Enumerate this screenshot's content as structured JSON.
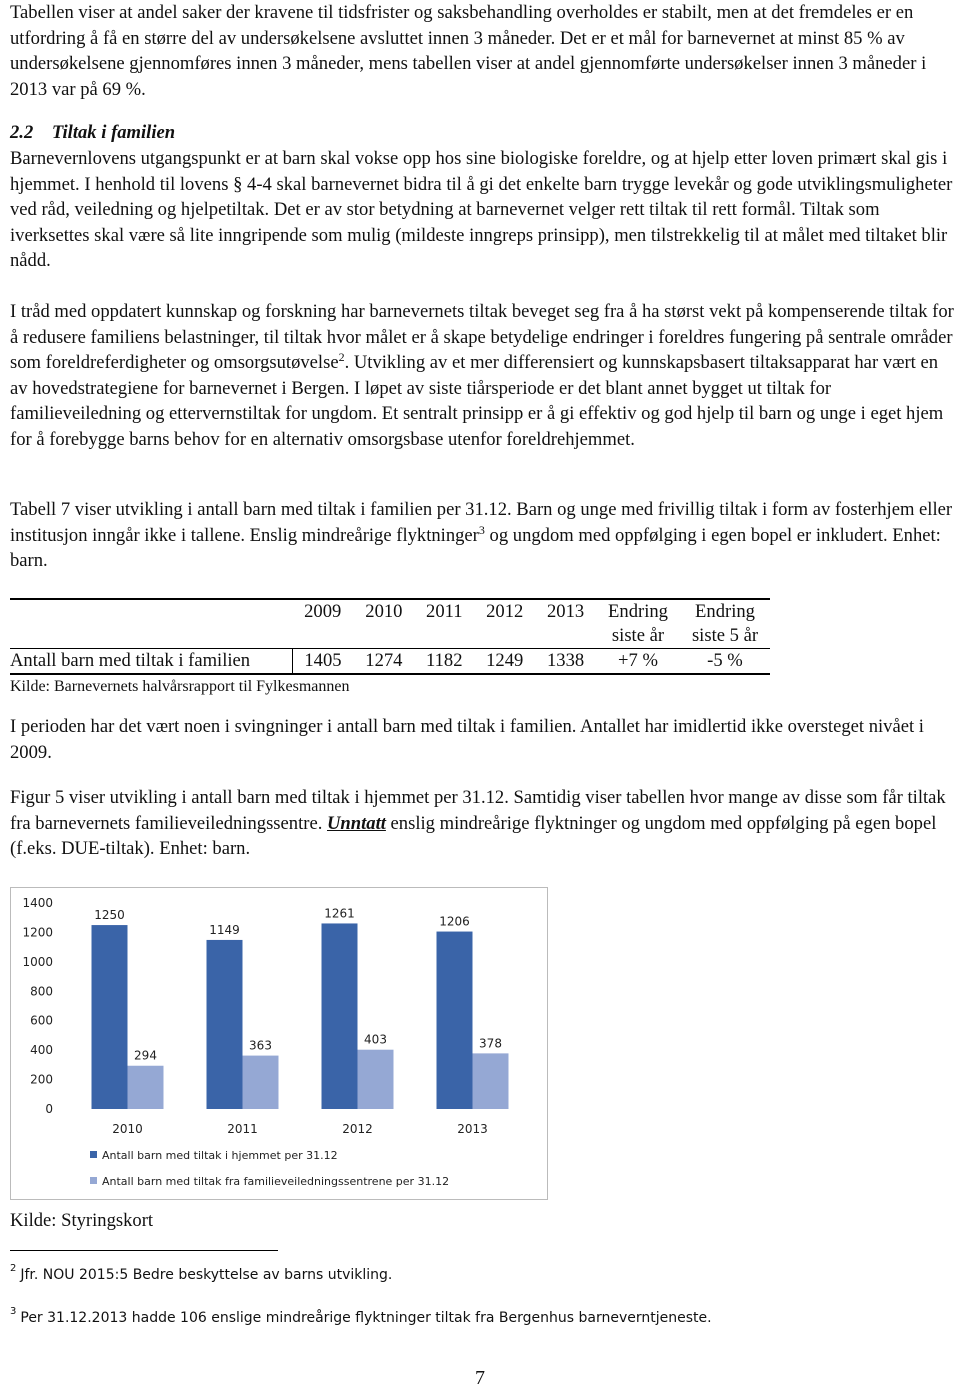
{
  "paragraphs": [
    "Tabellen viser at andel saker der kravene til tidsfrister og saksbehandling overholdes er stabilt, men at det fremdeles er en utfordring å få en større del av undersøkelsene avsluttet innen 3 måneder. Det er et mål for barnevernet at minst 85 % av undersøkelsene gjennomføres innen 3 måneder, mens tabellen viser at andel gjennomførte undersøkelser innen 3 måneder i 2013 var på 69 %."
  ],
  "heading": {
    "number": "2.2",
    "title": "Tiltak i familien"
  },
  "section_paragraphs": [
    "Barnevernlovens utgangspunkt er at barn skal vokse opp hos sine biologiske foreldre, og at hjelp etter loven primært skal gis i hjemmet. I henhold til lovens § 4-4 skal barnevernet bidra til å gi det enkelte barn trygge levekår og gode utviklingsmuligheter ved råd, veiledning og hjelpetiltak. Det er av stor betydning at barnevernet velger rett tiltak til rett formål. Tiltak som iverksettes skal være så lite inngripende som mulig (mildeste inngreps prinsipp), men tilstrekkelig til at målet med tiltaket blir nådd.",
    {
      "before": "I tråd med oppdatert kunnskap og forskning har barnevernets tiltak beveget seg fra å ha størst vekt på kompenserende tiltak for å redusere familiens belastninger, til tiltak hvor målet er å skape betydelige endringer i foreldres fungering på sentrale områder som foreldreferdigheter og omsorgsutøvelse",
      "note": "2",
      "after": ". Utvikling av et mer differensiert og kunnskapsbasert tiltaksapparat har vært en av hovedstrategiene for barnevernet i Bergen. I løpet av siste tiårsperiode er det blant annet bygget ut tiltak for familieveiledning og ettervernstiltak for ungdom. Et sentralt prinsipp er å gi effektiv og god hjelp til barn og unge i eget hjem for å forebygge barns behov for en alternativ omsorgsbase utenfor foreldrehjemmet."
    },
    {
      "before": "Tabell 7 viser utvikling i antall barn med tiltak i familien per 31.12. Barn og unge med frivillig tiltak i form av fosterhjem eller institusjon inngår ikke i tallene. Enslig mindreårige flyktninger",
      "note": "3",
      "after": " og ungdom med oppfølging i egen bopel er inkludert. Enhet: barn."
    }
  ],
  "table": {
    "years": [
      "2009",
      "2010",
      "2011",
      "2012",
      "2013"
    ],
    "change_columns": [
      "Endring siste år",
      "Endring siste 5 år"
    ],
    "rows": [
      {
        "label": "Antall barn med tiltak i familien",
        "values": [
          "1405",
          "1274",
          "1182",
          "1249",
          "1338"
        ],
        "changes": [
          "+7 %",
          "-5 %"
        ]
      }
    ],
    "source": "Kilde: Barnevernets halvårsrapport til Fylkesmannen"
  },
  "after_table": [
    "I perioden har det vært noen i svingninger i antall barn med tiltak i familien. Antallet har imidlertid ikke oversteget nivået i 2009.",
    {
      "before": "Figur 5 viser utvikling i antall barn med tiltak i hjemmet per 31.12. Samtidig viser tabellen hvor mange av disse som får tiltak fra barnevernets familieveiledningssentre. ",
      "emphasis": "Unntatt",
      "after": " enslig mindreårige flyktninger og ungdom med oppfølging på egen bopel (f.eks. DUE-tiltak). Enhet: barn."
    }
  ],
  "chart_data": {
    "type": "bar",
    "categories": [
      "2010",
      "2011",
      "2012",
      "2013"
    ],
    "series": [
      {
        "name": "Antall barn med tiltak i hjemmet per 31.12",
        "color": "#3a64a8",
        "values": [
          1250,
          1149,
          1261,
          1206
        ]
      },
      {
        "name": "Antall barn med tiltak fra familieveiledningssentrene per 31.12",
        "color": "#95a8d4",
        "values": [
          294,
          363,
          403,
          378
        ]
      }
    ],
    "ylim": [
      0,
      1400
    ],
    "yticks": [
      0,
      200,
      400,
      600,
      800,
      1000,
      1200,
      1400
    ],
    "grid": false,
    "legend": "bottom"
  },
  "chart_source": "Kilde: Styringskort",
  "footnotes": [
    {
      "mark": "2",
      "text": "Jfr. NOU 2015:5 Bedre beskyttelse av barns utvikling."
    },
    {
      "mark": "3",
      "text": "Per 31.12.2013 hadde 106 enslige mindreårige flyktninger tiltak fra Bergenhus barneverntjeneste."
    }
  ],
  "page_number": "7"
}
